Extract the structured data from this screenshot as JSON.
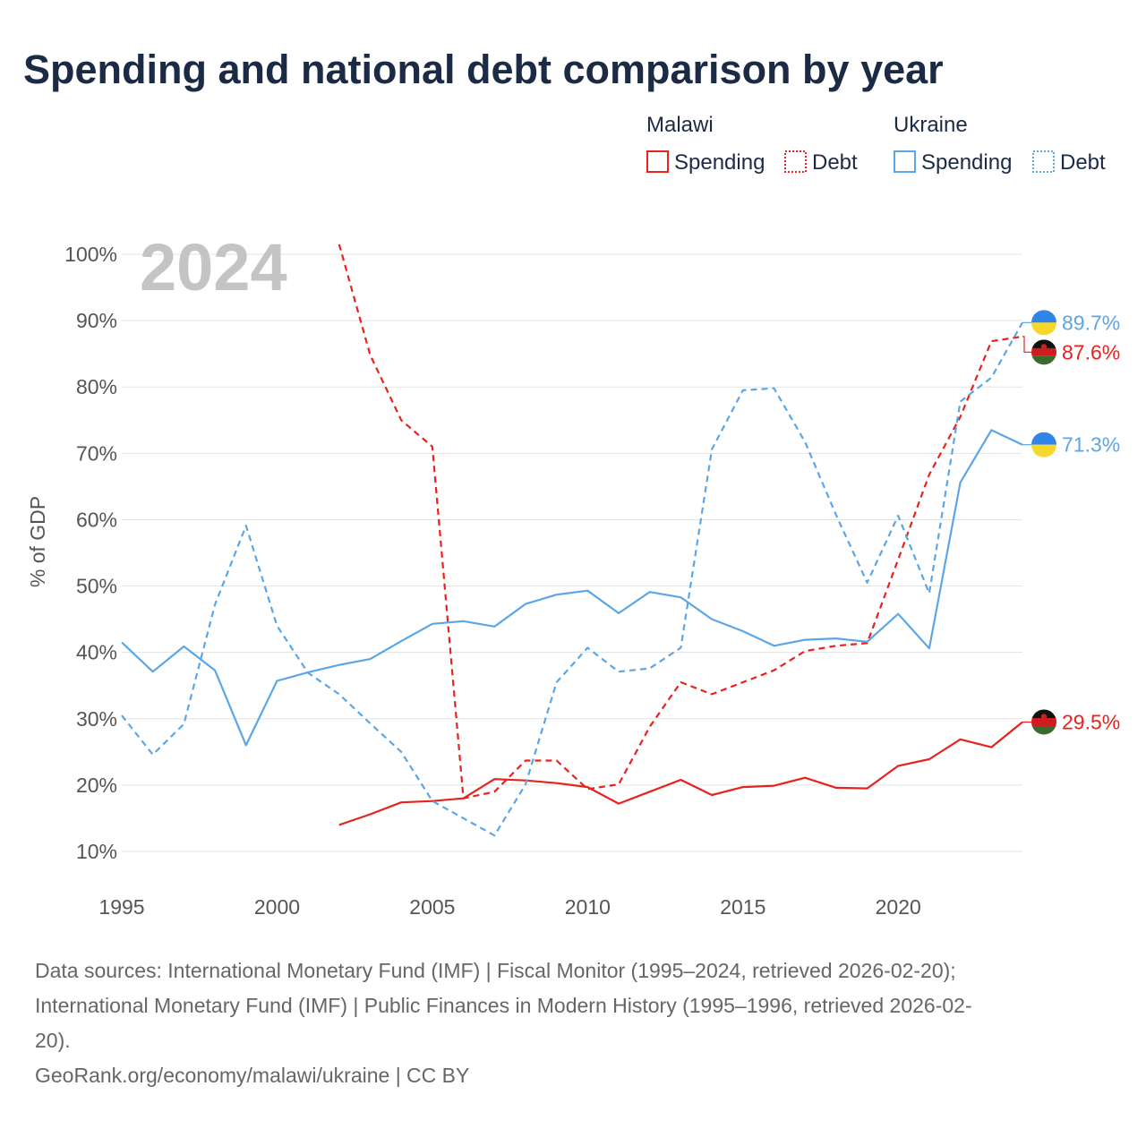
{
  "title": "Spending and national debt comparison by year",
  "colors": {
    "malawi": "#e8221c",
    "ukraine": "#5ba6e6"
  },
  "legend": {
    "groups": [
      {
        "country": "Malawi",
        "key": "malawi",
        "spending_label": "Spending",
        "debt_label": "Debt"
      },
      {
        "country": "Ukraine",
        "key": "ukraine",
        "spending_label": "Spending",
        "debt_label": "Debt"
      }
    ]
  },
  "year_watermark": "2024",
  "chart_data": {
    "type": "line",
    "ylabel": "% of GDP",
    "xlabel": "",
    "xlim": [
      1995,
      2024
    ],
    "ylim": [
      5,
      102
    ],
    "x_ticks": [
      1995,
      2000,
      2005,
      2010,
      2015,
      2020
    ],
    "y_ticks": [
      10,
      20,
      30,
      40,
      50,
      60,
      70,
      80,
      90,
      100
    ],
    "y_tick_labels": [
      "10%",
      "20%",
      "30%",
      "40%",
      "50%",
      "60%",
      "70%",
      "80%",
      "90%",
      "100%"
    ],
    "series": [
      {
        "name": "Malawi Spending",
        "country": "malawi",
        "style": "solid",
        "x": [
          2002,
          2003,
          2004,
          2005,
          2006,
          2007,
          2008,
          2009,
          2010,
          2011,
          2012,
          2013,
          2014,
          2015,
          2016,
          2017,
          2018,
          2019,
          2020,
          2021,
          2022,
          2023,
          2024
        ],
        "values": [
          14.0,
          15.6,
          17.4,
          17.6,
          18.0,
          20.9,
          20.7,
          20.3,
          19.7,
          17.2,
          19.0,
          20.8,
          18.5,
          19.7,
          19.9,
          21.1,
          19.6,
          19.5,
          22.9,
          23.9,
          26.9,
          25.7,
          29.5
        ],
        "end_label": "29.5%"
      },
      {
        "name": "Malawi Debt",
        "country": "malawi",
        "style": "dashed",
        "x": [
          2002,
          2003,
          2004,
          2005,
          2006,
          2007,
          2008,
          2009,
          2010,
          2011,
          2012,
          2013,
          2014,
          2015,
          2016,
          2017,
          2018,
          2019,
          2020,
          2021,
          2022,
          2023,
          2024
        ],
        "values": [
          101.5,
          84.8,
          75.0,
          71.0,
          18.0,
          19.0,
          23.7,
          23.7,
          19.4,
          20.1,
          28.8,
          35.5,
          33.7,
          35.5,
          37.3,
          40.2,
          41.0,
          41.4,
          54.0,
          66.8,
          75.5,
          86.9,
          87.6
        ],
        "end_label": "87.6%"
      },
      {
        "name": "Ukraine Spending",
        "country": "ukraine",
        "style": "solid",
        "x": [
          1995,
          1996,
          1997,
          1998,
          1999,
          2000,
          2001,
          2002,
          2003,
          2004,
          2005,
          2006,
          2007,
          2008,
          2009,
          2010,
          2011,
          2012,
          2013,
          2014,
          2015,
          2016,
          2017,
          2018,
          2019,
          2020,
          2021,
          2022,
          2023,
          2024
        ],
        "values": [
          41.5,
          37.1,
          40.9,
          37.3,
          26.0,
          35.7,
          37.0,
          38.1,
          39.0,
          41.7,
          44.3,
          44.7,
          43.9,
          47.3,
          48.7,
          49.3,
          45.9,
          49.1,
          48.3,
          45.0,
          43.2,
          41.0,
          41.9,
          42.1,
          41.6,
          45.8,
          40.6,
          65.6,
          73.5,
          71.3
        ],
        "end_label": "71.3%"
      },
      {
        "name": "Ukraine Debt",
        "country": "ukraine",
        "style": "dashed",
        "x": [
          1995,
          1996,
          1997,
          1998,
          1999,
          2000,
          2001,
          2002,
          2003,
          2004,
          2005,
          2006,
          2007,
          2008,
          2009,
          2010,
          2011,
          2012,
          2013,
          2014,
          2015,
          2016,
          2017,
          2018,
          2019,
          2020,
          2021,
          2022,
          2023,
          2024
        ],
        "values": [
          30.5,
          24.6,
          29.2,
          47.2,
          59.1,
          44.0,
          36.9,
          33.7,
          29.3,
          25.0,
          17.6,
          15.0,
          12.4,
          20.1,
          35.5,
          40.7,
          37.1,
          37.6,
          40.7,
          70.6,
          79.5,
          79.8,
          71.7,
          60.7,
          50.5,
          60.6,
          48.9,
          77.8,
          81.4,
          89.7
        ],
        "end_label": "89.7%"
      }
    ]
  },
  "source": {
    "lines": [
      "Data sources: International Monetary Fund (IMF) | Fiscal Monitor (1995–2024, retrieved 2026-02-20);",
      "International Monetary Fund (IMF) | Public Finances in Modern History (1995–1996, retrieved 2026-02-",
      "20)."
    ],
    "credit": "GeoRank.org/economy/malawi/ukraine | CC BY"
  }
}
